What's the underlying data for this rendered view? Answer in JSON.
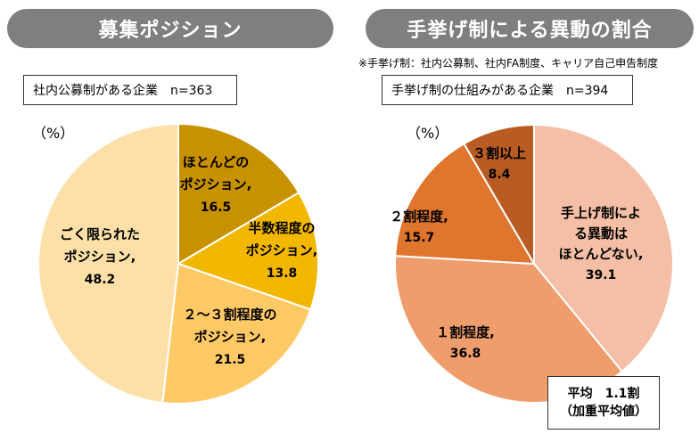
{
  "left_panel": {
    "title": "募集ポジション",
    "sample": "社内公募制がある企業　n=363",
    "unit": "（%）"
  },
  "right_panel": {
    "title": "手挙げ制による異動の割合",
    "note": "※手挙げ制：社内公募制、社内FA制度、キャリア自己申告制度",
    "sample": "手挙げ制の仕組みがある企業　n=394",
    "unit": "（%）",
    "average_line1": "平均　1.1割",
    "average_line2": "（加重平均値）"
  },
  "chart_data": [
    {
      "type": "pie",
      "title": "募集ポジション",
      "slices": [
        {
          "label": [
            "ほとんどの",
            "ポジション,"
          ],
          "value": 16.5,
          "color": "#c79100"
        },
        {
          "label": [
            "半数程度の",
            "ポジション,"
          ],
          "value": 13.8,
          "color": "#f2b700"
        },
        {
          "label": [
            "２～３割程度の",
            "ポジション,"
          ],
          "value": 21.5,
          "color": "#ffc966"
        },
        {
          "label": [
            "ごく限られた",
            "ポジション,"
          ],
          "value": 48.2,
          "color": "#fddfa8"
        }
      ]
    },
    {
      "type": "pie",
      "title": "手挙げ制による異動の割合",
      "slices": [
        {
          "label": [
            "手上げ制によ",
            "る異動は",
            "ほとんどない,"
          ],
          "value": 39.1,
          "color": "#f4bfa6"
        },
        {
          "label": [
            "１割程度,"
          ],
          "value": 36.8,
          "color": "#ef9d6c"
        },
        {
          "label": [
            "２割程度,"
          ],
          "value": 15.7,
          "color": "#e0762e"
        },
        {
          "label": [
            "３割以上"
          ],
          "value": 8.4,
          "color": "#b85c24"
        }
      ]
    }
  ]
}
